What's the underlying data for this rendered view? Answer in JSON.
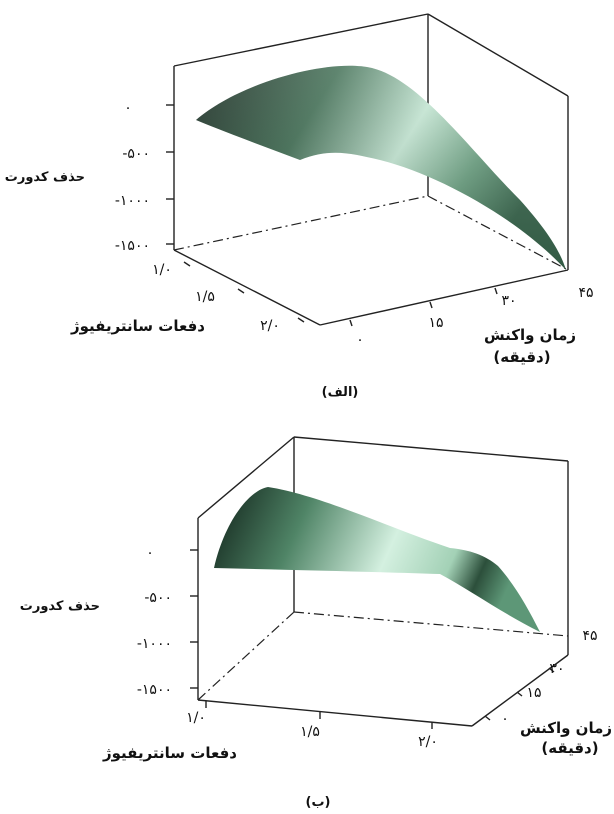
{
  "chart_data": [
    {
      "type": "surface",
      "panel_label": "(الف)",
      "zlabel": "حذف کدورت",
      "z_ticks": [
        "۰",
        "-۵۰۰",
        "-۱۰۰۰",
        "-۱۵۰۰"
      ],
      "xlabel": "دفعات سانتریفیوژ",
      "x_ticks": [
        "۱/۰",
        "۱/۵",
        "۲/۰"
      ],
      "ylabel_line1": "زمان واکنش",
      "ylabel_line2": "(دقیقه)",
      "y_ticks": [
        "۰",
        "۱۵",
        "۳۰",
        "۴۵"
      ],
      "x_range": [
        1.0,
        2.0
      ],
      "y_range": [
        0,
        45
      ],
      "z_range": [
        -1500,
        0
      ],
      "surface_color": "#5f9b7c"
    },
    {
      "type": "surface",
      "panel_label": "(ب)",
      "zlabel": "حذف کدورت",
      "z_ticks": [
        "۰",
        "-۵۰۰",
        "-۱۰۰۰",
        "-۱۵۰۰"
      ],
      "xlabel": "دفعات سانتریفیوژ",
      "x_ticks": [
        "۱/۰",
        "۱/۵",
        "۲/۰"
      ],
      "ylabel_line1": "زمان واکنش",
      "ylabel_line2": "(دقیقه)",
      "y_ticks": [
        "۰",
        "۱۵",
        "۳۰",
        "۴۵"
      ],
      "x_range": [
        1.0,
        2.0
      ],
      "y_range": [
        0,
        45
      ],
      "z_range": [
        -1500,
        0
      ],
      "surface_color": "#5f9b7c"
    }
  ]
}
